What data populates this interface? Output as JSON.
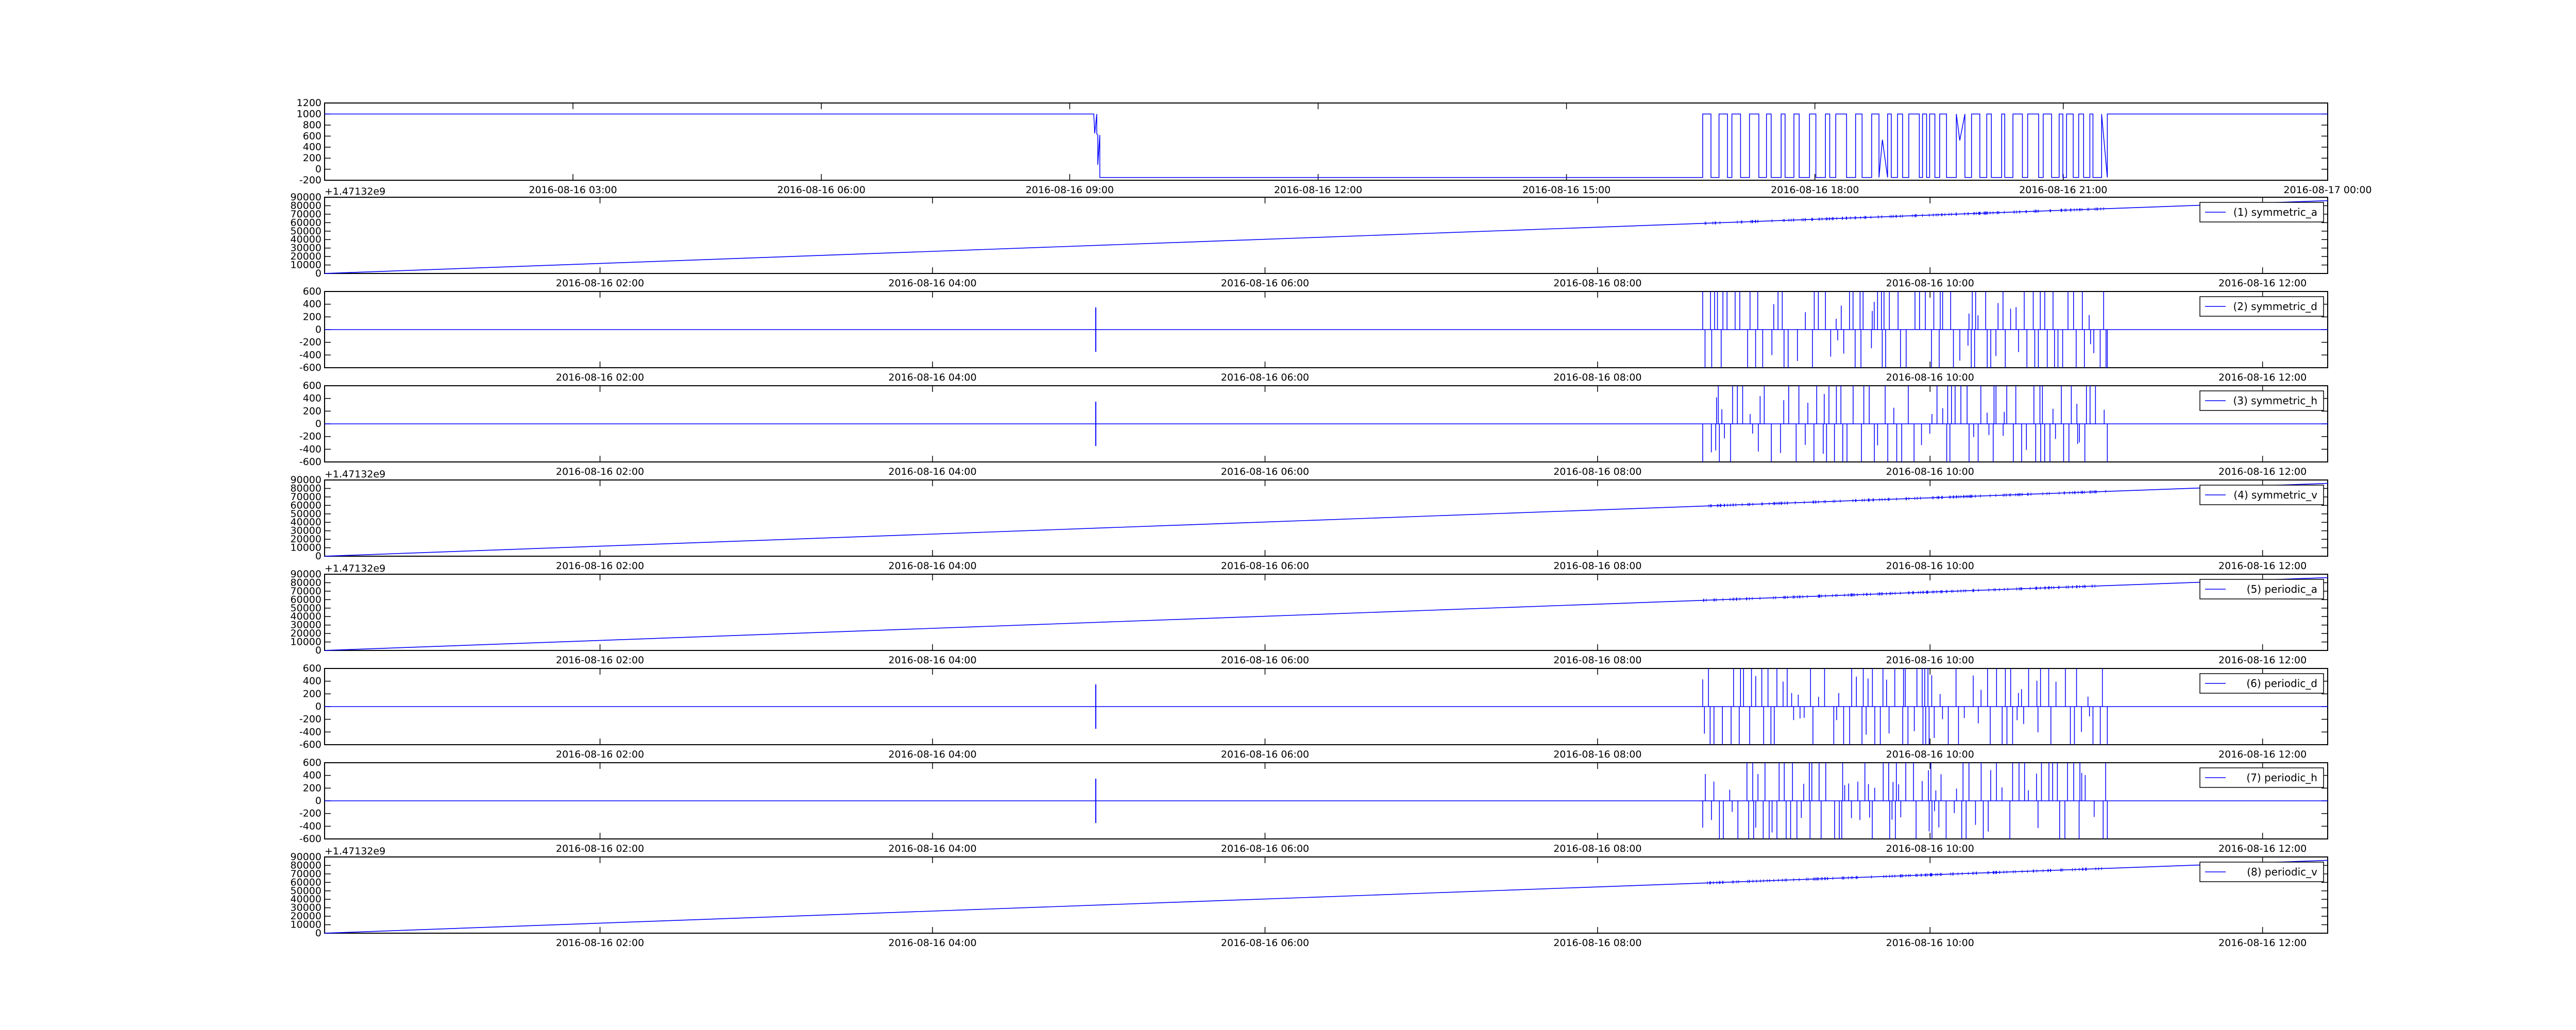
{
  "chart_data": [
    {
      "type": "line",
      "title": "",
      "xlabel": "",
      "ylabel": "",
      "ylim": [
        -200,
        1200
      ],
      "yticks": [
        "-200",
        "0",
        "200",
        "400",
        "600",
        "800",
        "1000",
        "1200"
      ],
      "xticks": [
        "2016-08-16 03:00",
        "2016-08-16 06:00",
        "2016-08-16 09:00",
        "2016-08-16 12:00",
        "2016-08-16 15:00",
        "2016-08-16 18:00",
        "2016-08-16 21:00",
        "2016-08-17 00:00"
      ],
      "offset_text": "",
      "legend": null,
      "series": [
        {
          "values_description_points": [
            [
              0.0,
              1000
            ],
            [
              0.385,
              1000
            ],
            [
              0.3855,
              640
            ],
            [
              0.3865,
              620
            ],
            [
              0.388,
              -150
            ],
            [
              0.688,
              -150
            ],
            [
              0.688,
              1000
            ],
            [
              0.69,
              -150
            ],
            [
              1.0,
              1000
            ]
          ],
          "burst": {
            "start": 0.688,
            "end": 0.89,
            "high": 1000,
            "low": -150,
            "extra": [
              0.887,
              0.888,
              0.889
            ]
          },
          "post_segment": [
            0.89,
            1.0,
            1000
          ]
        }
      ]
    },
    {
      "type": "line",
      "title": "",
      "xlabel": "",
      "ylabel": "",
      "ylim": [
        0,
        90000
      ],
      "yticks": [
        "0",
        "10000",
        "20000",
        "30000",
        "40000",
        "50000",
        "60000",
        "70000",
        "80000",
        "90000"
      ],
      "xticks": [
        "2016-08-16 02:00",
        "2016-08-16 04:00",
        "2016-08-16 06:00",
        "2016-08-16 08:00",
        "2016-08-16 10:00",
        "2016-08-16 12:00"
      ],
      "offset_text": "+1.47132e9",
      "legend": "(1) symmetric_a",
      "kind": "ramp",
      "ramp": [
        [
          0.0,
          0
        ],
        [
          1.0,
          86000
        ]
      ]
    },
    {
      "type": "line",
      "title": "",
      "xlabel": "",
      "ylabel": "",
      "ylim": [
        -600,
        600
      ],
      "yticks": [
        "-600",
        "-400",
        "-200",
        "0",
        "200",
        "400",
        "600"
      ],
      "xticks": [
        "2016-08-16 02:00",
        "2016-08-16 04:00",
        "2016-08-16 06:00",
        "2016-08-16 08:00",
        "2016-08-16 10:00",
        "2016-08-16 12:00"
      ],
      "offset_text": "",
      "legend": "(2) symmetric_d",
      "kind": "spikes",
      "baseline": 0
    },
    {
      "type": "line",
      "title": "",
      "xlabel": "",
      "ylabel": "",
      "ylim": [
        -600,
        600
      ],
      "yticks": [
        "-600",
        "-400",
        "-200",
        "0",
        "200",
        "400",
        "600"
      ],
      "xticks": [
        "2016-08-16 02:00",
        "2016-08-16 04:00",
        "2016-08-16 06:00",
        "2016-08-16 08:00",
        "2016-08-16 10:00",
        "2016-08-16 12:00"
      ],
      "offset_text": "",
      "legend": "(3) symmetric_h",
      "kind": "spikes",
      "baseline": 0
    },
    {
      "type": "line",
      "title": "",
      "xlabel": "",
      "ylabel": "",
      "ylim": [
        0,
        90000
      ],
      "yticks": [
        "0",
        "10000",
        "20000",
        "30000",
        "40000",
        "50000",
        "60000",
        "70000",
        "80000",
        "90000"
      ],
      "xticks": [
        "2016-08-16 02:00",
        "2016-08-16 04:00",
        "2016-08-16 06:00",
        "2016-08-16 08:00",
        "2016-08-16 10:00",
        "2016-08-16 12:00"
      ],
      "offset_text": "+1.47132e9",
      "legend": "(4) symmetric_v",
      "kind": "ramp",
      "ramp": [
        [
          0.0,
          0
        ],
        [
          1.0,
          86000
        ]
      ]
    },
    {
      "type": "line",
      "title": "",
      "xlabel": "",
      "ylabel": "",
      "ylim": [
        0,
        90000
      ],
      "yticks": [
        "0",
        "10000",
        "20000",
        "30000",
        "40000",
        "50000",
        "60000",
        "70000",
        "80000",
        "90000"
      ],
      "xticks": [
        "2016-08-16 02:00",
        "2016-08-16 04:00",
        "2016-08-16 06:00",
        "2016-08-16 08:00",
        "2016-08-16 10:00",
        "2016-08-16 12:00"
      ],
      "offset_text": "+1.47132e9",
      "legend": "(5) periodic_a",
      "kind": "ramp",
      "ramp": [
        [
          0.0,
          0
        ],
        [
          1.0,
          86000
        ]
      ]
    },
    {
      "type": "line",
      "title": "",
      "xlabel": "",
      "ylabel": "",
      "ylim": [
        -600,
        600
      ],
      "yticks": [
        "-600",
        "-400",
        "-200",
        "0",
        "200",
        "400",
        "600"
      ],
      "xticks": [
        "2016-08-16 02:00",
        "2016-08-16 04:00",
        "2016-08-16 06:00",
        "2016-08-16 08:00",
        "2016-08-16 10:00",
        "2016-08-16 12:00"
      ],
      "offset_text": "",
      "legend": "(6) periodic_d",
      "kind": "spikes",
      "baseline": 0
    },
    {
      "type": "line",
      "title": "",
      "xlabel": "",
      "ylabel": "",
      "ylim": [
        -600,
        600
      ],
      "yticks": [
        "-600",
        "-400",
        "-200",
        "0",
        "200",
        "400",
        "600"
      ],
      "xticks": [
        "2016-08-16 02:00",
        "2016-08-16 04:00",
        "2016-08-16 06:00",
        "2016-08-16 08:00",
        "2016-08-16 10:00",
        "2016-08-16 12:00"
      ],
      "offset_text": "",
      "legend": "(7) periodic_h",
      "kind": "spikes",
      "baseline": 0
    },
    {
      "type": "line",
      "title": "",
      "xlabel": "",
      "ylabel": "",
      "ylim": [
        0,
        90000
      ],
      "yticks": [
        "0",
        "10000",
        "20000",
        "30000",
        "40000",
        "50000",
        "60000",
        "70000",
        "80000",
        "90000"
      ],
      "xticks": [
        "2016-08-16 02:00",
        "2016-08-16 04:00",
        "2016-08-16 06:00",
        "2016-08-16 08:00",
        "2016-08-16 10:00",
        "2016-08-16 12:00"
      ],
      "offset_text": "+1.47132e9",
      "legend": "(8) periodic_v",
      "kind": "ramp",
      "ramp": [
        [
          0.0,
          0
        ],
        [
          1.0,
          86000
        ]
      ]
    }
  ],
  "colors": {
    "line": "#0000ff",
    "axes": "#000000",
    "background": "#ffffff"
  }
}
